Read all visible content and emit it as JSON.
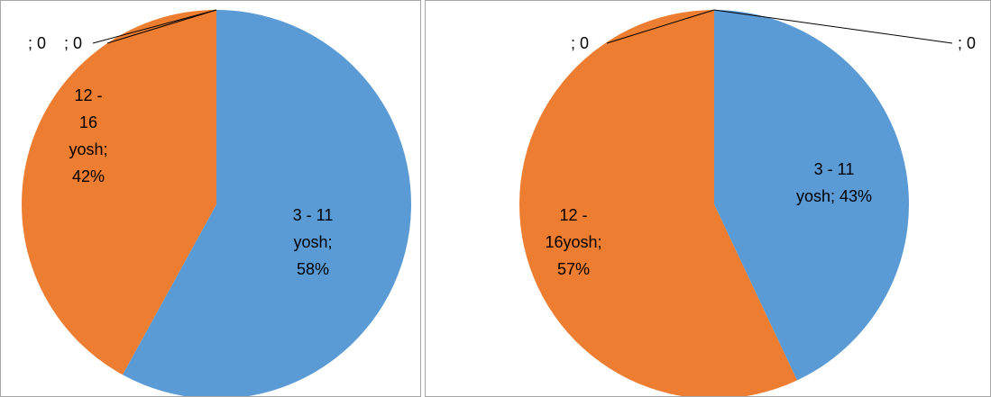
{
  "chart_data": [
    {
      "type": "pie",
      "slices": [
        {
          "lines": [
            "3 - 11",
            "yosh;",
            "58%"
          ],
          "value": 58,
          "color": "#5b9bd5"
        },
        {
          "lines": [
            "12 -",
            "16",
            "yosh;",
            "42%"
          ],
          "value": 42,
          "color": "#ed7d31"
        },
        {
          "lines": [
            "; 0"
          ],
          "value": 0,
          "color": "#a5a5a5"
        },
        {
          "lines": [
            "; 0"
          ],
          "value": 0,
          "color": "#ffc000"
        }
      ]
    },
    {
      "type": "pie",
      "slices": [
        {
          "lines": [
            "3 - 11",
            "yosh; 43%"
          ],
          "value": 43,
          "color": "#5b9bd5"
        },
        {
          "lines": [
            "12 -",
            "16yosh;",
            "57%"
          ],
          "value": 57,
          "color": "#ed7d31"
        },
        {
          "lines": [
            "; 0"
          ],
          "value": 0,
          "color": "#a5a5a5"
        },
        {
          "lines": [
            "; 0"
          ],
          "value": 0,
          "color": "#ffc000"
        }
      ]
    }
  ]
}
